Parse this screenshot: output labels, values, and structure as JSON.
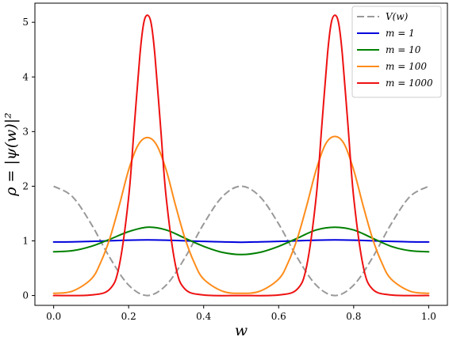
{
  "chart_data": {
    "type": "line",
    "title": "",
    "xlabel": "w",
    "ylabel": "ρ = |ψ(w)|²",
    "xlim": [
      -0.05,
      1.05
    ],
    "ylim": [
      -0.18,
      5.35
    ],
    "x_ticks": [
      0.0,
      0.2,
      0.4,
      0.6,
      0.8,
      1.0
    ],
    "x_tick_labels": [
      "0.0",
      "0.2",
      "0.4",
      "0.6",
      "0.8",
      "1.0"
    ],
    "y_ticks": [
      0,
      1,
      2,
      3,
      4,
      5
    ],
    "y_tick_labels": [
      "0",
      "1",
      "2",
      "3",
      "4",
      "5"
    ],
    "grid": false,
    "legend_position": "top-right",
    "series": [
      {
        "name": "V(w)",
        "color": "#999999",
        "style": "dashed",
        "x": [
          0.0,
          0.05,
          0.1,
          0.15,
          0.2,
          0.25,
          0.3,
          0.35,
          0.4,
          0.45,
          0.5,
          0.55,
          0.6,
          0.65,
          0.7,
          0.75,
          0.8,
          0.85,
          0.9,
          0.95,
          1.0
        ],
        "y": [
          2.0,
          1.81,
          1.31,
          0.69,
          0.19,
          0.0,
          0.19,
          0.69,
          1.31,
          1.81,
          2.0,
          1.81,
          1.31,
          0.69,
          0.19,
          0.0,
          0.19,
          0.69,
          1.31,
          1.81,
          2.0
        ]
      },
      {
        "name": "m = 1",
        "color": "#0000dd",
        "style": "solid",
        "x": [
          0.0,
          0.05,
          0.1,
          0.15,
          0.2,
          0.25,
          0.3,
          0.35,
          0.4,
          0.45,
          0.5,
          0.55,
          0.6,
          0.65,
          0.7,
          0.75,
          0.8,
          0.85,
          0.9,
          0.95,
          1.0
        ],
        "y": [
          0.98,
          0.982,
          0.99,
          1.002,
          1.013,
          1.018,
          1.013,
          1.002,
          0.99,
          0.982,
          0.975,
          0.982,
          0.99,
          1.002,
          1.013,
          1.018,
          1.013,
          1.002,
          0.99,
          0.982,
          0.98
        ]
      },
      {
        "name": "m = 10",
        "color": "#008000",
        "style": "solid",
        "x": [
          0.0,
          0.05,
          0.1,
          0.15,
          0.2,
          0.25,
          0.3,
          0.35,
          0.4,
          0.45,
          0.5,
          0.55,
          0.6,
          0.65,
          0.7,
          0.75,
          0.8,
          0.85,
          0.9,
          0.95,
          1.0
        ],
        "y": [
          0.8,
          0.82,
          0.9,
          1.03,
          1.17,
          1.25,
          1.2,
          1.05,
          0.9,
          0.79,
          0.75,
          0.79,
          0.9,
          1.05,
          1.2,
          1.25,
          1.2,
          1.05,
          0.9,
          0.82,
          0.8
        ]
      },
      {
        "name": "m = 100",
        "color": "#ff8c1a",
        "style": "solid",
        "x": [
          0.0,
          0.05,
          0.1,
          0.125,
          0.15,
          0.175,
          0.2,
          0.225,
          0.25,
          0.275,
          0.3,
          0.325,
          0.35,
          0.375,
          0.4,
          0.45,
          0.5,
          0.55,
          0.6,
          0.625,
          0.65,
          0.675,
          0.7,
          0.725,
          0.75,
          0.775,
          0.8,
          0.825,
          0.85,
          0.875,
          0.9,
          0.95,
          1.0
        ],
        "y": [
          0.04,
          0.08,
          0.3,
          0.6,
          1.05,
          1.65,
          2.3,
          2.75,
          2.89,
          2.75,
          2.3,
          1.65,
          1.05,
          0.6,
          0.3,
          0.08,
          0.04,
          0.08,
          0.3,
          0.6,
          1.05,
          1.65,
          2.3,
          2.77,
          2.91,
          2.77,
          2.3,
          1.65,
          1.05,
          0.6,
          0.3,
          0.08,
          0.04
        ]
      },
      {
        "name": "m = 1000",
        "color": "#ee1111",
        "style": "solid",
        "x": [
          0.0,
          0.1,
          0.15,
          0.175,
          0.2,
          0.215,
          0.23,
          0.24,
          0.25,
          0.26,
          0.27,
          0.285,
          0.3,
          0.325,
          0.35,
          0.4,
          0.5,
          0.6,
          0.65,
          0.675,
          0.7,
          0.715,
          0.73,
          0.74,
          0.75,
          0.76,
          0.77,
          0.785,
          0.8,
          0.825,
          0.85,
          0.9,
          1.0
        ],
        "y": [
          0.0,
          0.01,
          0.12,
          0.55,
          1.8,
          3.1,
          4.4,
          4.98,
          5.13,
          4.98,
          4.4,
          3.1,
          1.8,
          0.55,
          0.12,
          0.01,
          0.0,
          0.01,
          0.12,
          0.55,
          1.8,
          3.1,
          4.4,
          4.98,
          5.13,
          4.98,
          4.4,
          3.1,
          1.8,
          0.55,
          0.12,
          0.01,
          0.0
        ]
      }
    ]
  }
}
